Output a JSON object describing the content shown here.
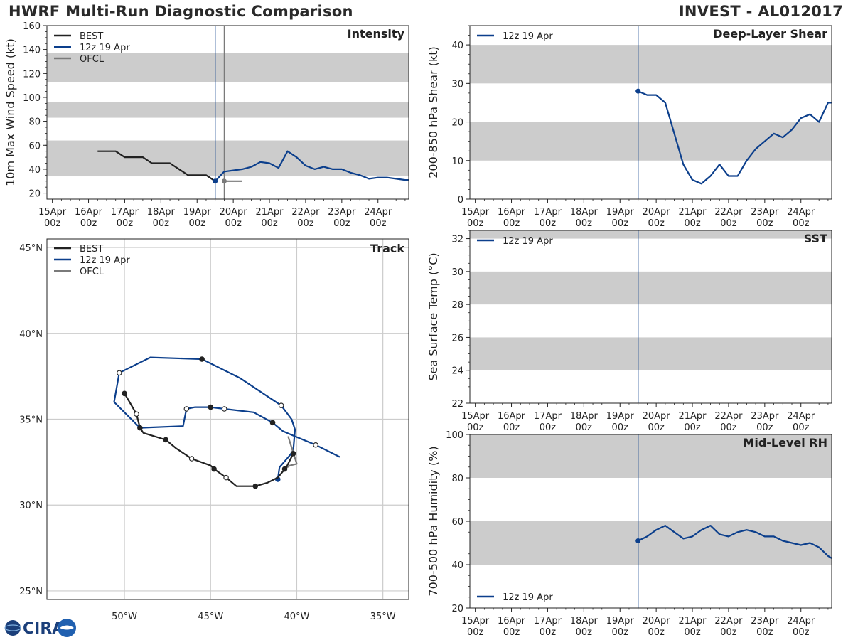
{
  "header": {
    "title": "HWRF Multi-Run Diagnostic Comparison",
    "storm_id": "INVEST - AL012017"
  },
  "logo": {
    "text": "CIRA",
    "icon": "cira-logo-icon"
  },
  "colors": {
    "best": "#222222",
    "model": "#0c3f8c",
    "ofcl": "#7a7a7a",
    "band": "#cccccc",
    "grid": "#cccccc"
  },
  "time_ticks": [
    "15Apr\n00z",
    "16Apr\n00z",
    "17Apr\n00z",
    "18Apr\n00z",
    "19Apr\n00z",
    "20Apr\n00z",
    "21Apr\n00z",
    "22Apr\n00z",
    "23Apr\n00z",
    "24Apr\n00z"
  ],
  "chart_data": [
    {
      "id": "intensity",
      "type": "line",
      "title": "Intensity",
      "ylabel": "10m Max Wind Speed (kt)",
      "xlabel": "",
      "xlim": [
        -0.15,
        9.85
      ],
      "ylim": [
        15,
        160
      ],
      "yticks": [
        20,
        40,
        60,
        80,
        100,
        120,
        140,
        160
      ],
      "bands": [
        [
          34,
          64
        ],
        [
          83,
          96
        ],
        [
          113,
          137
        ]
      ],
      "vlines": [
        {
          "x": 4.5,
          "color": "model"
        },
        {
          "x": 4.75,
          "color": "ofcl"
        }
      ],
      "legend": [
        "BEST",
        "12z 19 Apr",
        "OFCL"
      ],
      "legend_position": "top-left",
      "series": [
        {
          "name": "BEST",
          "color": "best",
          "x": [
            1.25,
            1.5,
            1.75,
            2.0,
            2.25,
            2.5,
            2.75,
            3.0,
            3.25,
            3.5,
            3.75,
            4.0,
            4.25,
            4.5
          ],
          "values": [
            55,
            55,
            55,
            50,
            50,
            50,
            45,
            45,
            45,
            40,
            35,
            35,
            35,
            30
          ]
        },
        {
          "name": "12z 19 Apr",
          "color": "model",
          "x": [
            4.5,
            4.75,
            5.0,
            5.25,
            5.5,
            5.75,
            6.0,
            6.25,
            6.5,
            6.75,
            7.0,
            7.25,
            7.5,
            7.75,
            8.0,
            8.25,
            8.5,
            8.75,
            9.0,
            9.25,
            9.5,
            9.75,
            9.85
          ],
          "values": [
            30,
            38,
            39,
            40,
            42,
            46,
            45,
            41,
            55,
            50,
            43,
            40,
            42,
            40,
            40,
            37,
            35,
            32,
            33,
            33,
            32,
            31,
            31
          ],
          "start_marker": true
        },
        {
          "name": "OFCL",
          "color": "ofcl",
          "x": [
            4.75,
            5.0,
            5.25
          ],
          "values": [
            30,
            30,
            30
          ],
          "start_marker": true
        }
      ]
    },
    {
      "id": "shear",
      "type": "line",
      "title": "Deep-Layer Shear",
      "ylabel": "200-850 hPa Shear (kt)",
      "xlabel": "",
      "xlim": [
        -0.15,
        9.85
      ],
      "ylim": [
        0,
        45
      ],
      "yticks": [
        0,
        10,
        20,
        30,
        40
      ],
      "bands": [
        [
          10,
          20
        ],
        [
          30,
          40
        ]
      ],
      "vlines": [
        {
          "x": 4.5,
          "color": "model"
        }
      ],
      "legend": [
        "12z 19 Apr"
      ],
      "legend_position": "top-left",
      "series": [
        {
          "name": "12z 19 Apr",
          "color": "model",
          "x": [
            4.5,
            4.75,
            5.0,
            5.25,
            5.5,
            5.75,
            6.0,
            6.25,
            6.5,
            6.75,
            7.0,
            7.25,
            7.5,
            7.75,
            8.0,
            8.25,
            8.5,
            8.75,
            9.0,
            9.25,
            9.5,
            9.75,
            9.85
          ],
          "values": [
            28,
            27,
            27,
            25,
            17,
            9,
            5,
            4,
            6,
            9,
            6,
            6,
            10,
            13,
            15,
            17,
            16,
            18,
            21,
            22,
            20,
            25,
            25
          ],
          "start_marker": true
        }
      ]
    },
    {
      "id": "sst",
      "type": "line",
      "title": "SST",
      "ylabel": "Sea Surface Temp (°C)",
      "xlabel": "",
      "xlim": [
        -0.15,
        9.85
      ],
      "ylim": [
        22,
        32.5
      ],
      "yticks": [
        22,
        24,
        26,
        28,
        30,
        32
      ],
      "bands": [
        [
          24,
          26
        ],
        [
          28,
          30
        ],
        [
          32,
          32.5
        ]
      ],
      "vlines": [
        {
          "x": 4.5,
          "color": "model"
        }
      ],
      "legend": [
        "12z 19 Apr"
      ],
      "legend_position": "top-left",
      "series": []
    },
    {
      "id": "rh",
      "type": "line",
      "title": "Mid-Level RH",
      "ylabel": "700-500 hPa Humidity (%)",
      "xlabel": "",
      "xlim": [
        -0.15,
        9.85
      ],
      "ylim": [
        20,
        100
      ],
      "yticks": [
        20,
        40,
        60,
        80,
        100
      ],
      "bands": [
        [
          40,
          60
        ],
        [
          80,
          100
        ]
      ],
      "vlines": [
        {
          "x": 4.5,
          "color": "model"
        }
      ],
      "legend": [
        "12z 19 Apr"
      ],
      "legend_position": "bottom-left",
      "series": [
        {
          "name": "12z 19 Apr",
          "color": "model",
          "x": [
            4.5,
            4.75,
            5.0,
            5.25,
            5.5,
            5.75,
            6.0,
            6.25,
            6.5,
            6.75,
            7.0,
            7.25,
            7.5,
            7.75,
            8.0,
            8.25,
            8.5,
            8.75,
            9.0,
            9.25,
            9.5,
            9.75,
            9.85
          ],
          "values": [
            51,
            53,
            56,
            58,
            55,
            52,
            53,
            56,
            58,
            54,
            53,
            55,
            56,
            55,
            53,
            53,
            51,
            50,
            49,
            50,
            48,
            44,
            43
          ],
          "start_marker": true
        }
      ]
    },
    {
      "id": "track",
      "type": "line",
      "title": "Track",
      "xlabel": "",
      "ylabel": "",
      "xlim": [
        -54.5,
        -33.5
      ],
      "ylim": [
        24.5,
        45.5
      ],
      "xticks": [
        -50,
        -45,
        -40,
        -35
      ],
      "xtick_labels": [
        "50°W",
        "45°W",
        "40°W",
        "35°W"
      ],
      "yticks": [
        25,
        30,
        35,
        40,
        45
      ],
      "ytick_labels": [
        "25°N",
        "30°N",
        "35°N",
        "40°N",
        "45°N"
      ],
      "legend": [
        "BEST",
        "12z 19 Apr",
        "OFCL"
      ],
      "legend_position": "top-left",
      "series": [
        {
          "name": "BEST",
          "color": "best",
          "lon": [
            -50.0,
            -49.7,
            -49.3,
            -49.1,
            -48.9,
            -47.6,
            -47.0,
            -46.1,
            -45.0,
            -44.8,
            -44.1,
            -43.5,
            -42.4,
            -41.7,
            -41.1,
            -40.6,
            -40.2
          ],
          "lat": [
            36.5,
            36.0,
            35.3,
            34.5,
            34.2,
            33.8,
            33.3,
            32.7,
            32.3,
            32.1,
            31.6,
            31.1,
            31.1,
            31.3,
            31.6,
            32.2,
            33.0
          ],
          "filled_marks": [
            0,
            3,
            5,
            9,
            12,
            16
          ],
          "open_marks": [
            2,
            7,
            10
          ]
        },
        {
          "name": "12z 19 Apr",
          "color": "model",
          "lon": [
            -41.1,
            -41.0,
            -40.4,
            -40.2,
            -40.1,
            -40.3,
            -40.9,
            -43.3,
            -45.5,
            -48.5,
            -50.3,
            -50.6,
            -49.1,
            -46.6,
            -46.4,
            -45.9,
            -45.0,
            -44.2,
            -42.5,
            -41.4,
            -40.8,
            -40.1,
            -38.9,
            -37.5
          ],
          "lat": [
            31.5,
            32.2,
            32.9,
            33.2,
            34.4,
            35.0,
            35.8,
            37.4,
            38.5,
            38.6,
            37.7,
            36.0,
            34.5,
            34.6,
            35.6,
            35.7,
            35.7,
            35.6,
            35.4,
            34.8,
            34.3,
            34.0,
            33.5,
            32.8
          ],
          "filled_marks": [
            0,
            8,
            16,
            19
          ],
          "open_marks": [
            6,
            10,
            14,
            17,
            22
          ],
          "start_marker": true
        },
        {
          "name": "OFCL",
          "color": "ofcl",
          "lon": [
            -40.7,
            -40.4,
            -40.0,
            -40.5
          ],
          "lat": [
            32.1,
            32.3,
            32.4,
            34.0
          ],
          "filled_marks": [
            0
          ],
          "open_marks": []
        }
      ]
    }
  ]
}
